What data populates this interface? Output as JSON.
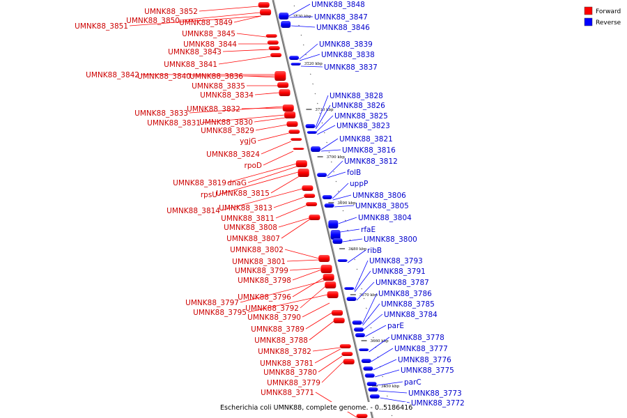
{
  "caption": "Escherichia coli UMNK88, complete genome. - 0..5186416",
  "legend": [
    {
      "label": "Forward",
      "color": "#ff0000"
    },
    {
      "label": "Reverse",
      "color": "#0000ff"
    }
  ],
  "colors": {
    "forward": "#ff0000",
    "reverse": "#0000ff",
    "forward_label": "#cc0000",
    "reverse_label": "#0000cc",
    "backbone": "#888888"
  },
  "ticks": [
    "3730 kbp",
    "3720 kbp",
    "3710 kbp",
    "3700 kbp",
    "3690 kbp",
    "3680 kbp",
    "3670 kbp",
    "3660 kbp",
    "3650 kbp"
  ],
  "forward_genes": [
    "UMNK88_3852",
    "UMNK88_3850",
    "UMNK88_3849",
    "UMNK88_3851",
    "UMNK88_3845",
    "UMNK88_3844",
    "UMNK88_3843",
    "UMNK88_3841",
    "UMNK88_3842",
    "UMNK88_3840",
    "UMNK88_3836",
    "UMNK88_3835",
    "UMNK88_3834",
    "UMNK88_3833",
    "UMNK88_3832",
    "UMNK88_3831",
    "UMNK88_3830",
    "UMNK88_3829",
    "ygjG",
    "UMNK88_3824",
    "rpoD",
    "UMNK88_3819",
    "dnaG",
    "rpsU",
    "UMNK88_3815",
    "UMNK88_3814",
    "UMNK88_3813",
    "UMNK88_3811",
    "UMNK88_3808",
    "UMNK88_3807",
    "UMNK88_3802",
    "UMNK88_3801",
    "UMNK88_3799",
    "UMNK88_3798",
    "UMNK88_3796",
    "UMNK88_3797",
    "UMNK88_3792",
    "UMNK88_3795",
    "UMNK88_3790",
    "UMNK88_3789",
    "UMNK88_3788",
    "UMNK88_3782",
    "UMNK88_3781",
    "UMNK88_3780",
    "UMNK88_3779",
    "UMNK88_3771"
  ],
  "reverse_genes": [
    "UMNK88_3848",
    "UMNK88_3847",
    "UMNK88_3846",
    "UMNK88_3839",
    "UMNK88_3838",
    "UMNK88_3837",
    "UMNK88_3828",
    "UMNK88_3826",
    "UMNK88_3825",
    "UMNK88_3823",
    "UMNK88_3821",
    "UMNK88_3816",
    "UMNK88_3812",
    "folB",
    "uppP",
    "UMNK88_3806",
    "UMNK88_3805",
    "UMNK88_3804",
    "rfaE",
    "UMNK88_3800",
    "ribB",
    "UMNK88_3793",
    "UMNK88_3791",
    "UMNK88_3787",
    "UMNK88_3786",
    "UMNK88_3785",
    "UMNK88_3784",
    "parE",
    "UMNK88_3778",
    "UMNK88_3777",
    "UMNK88_3776",
    "UMNK88_3775",
    "parC",
    "UMNK88_3773",
    "UMNK88_3772"
  ]
}
